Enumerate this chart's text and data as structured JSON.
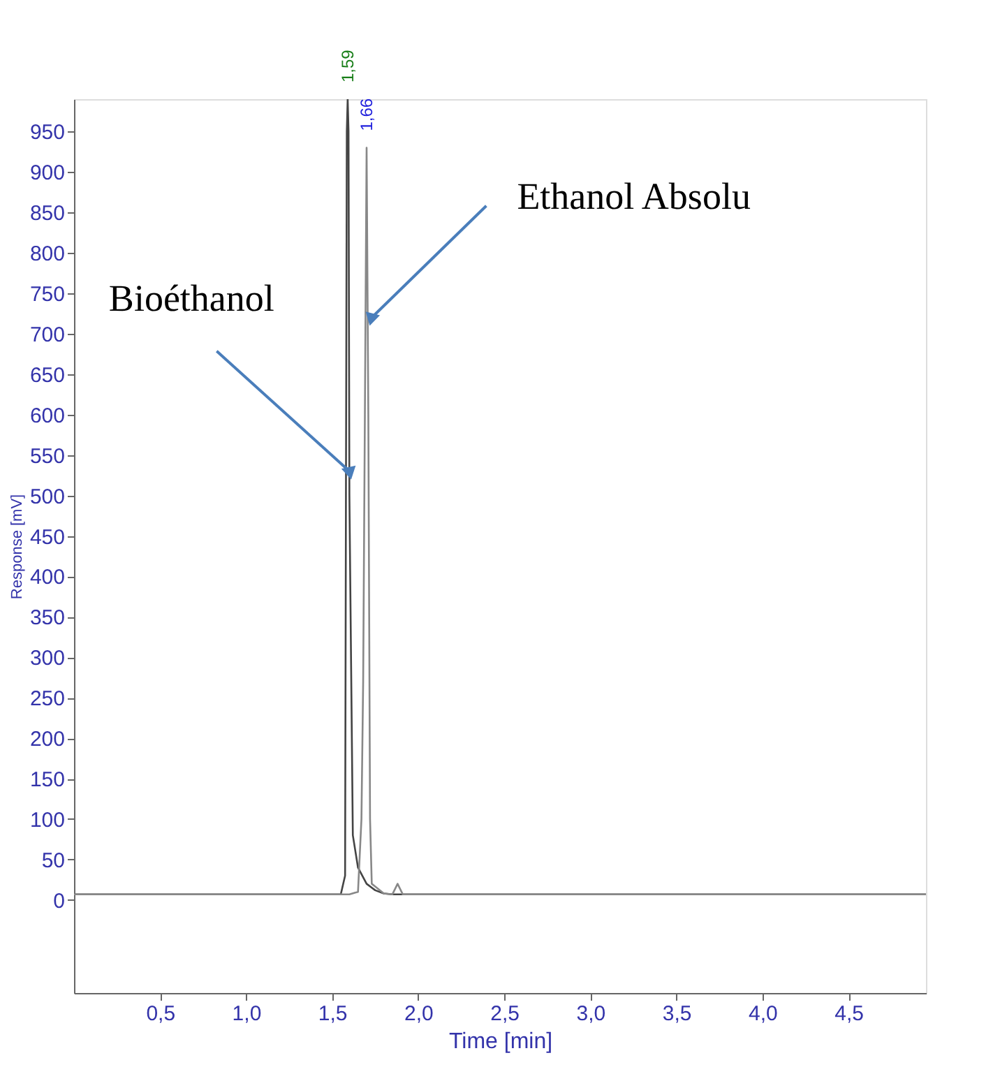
{
  "chart_data": {
    "type": "line",
    "xlabel": "Time [min]",
    "ylabel": "Response [mV]",
    "xlim": [
      0,
      4.95
    ],
    "ylim": [
      -115,
      990
    ],
    "xticks": [
      {
        "value": 0.5,
        "label": "0,5"
      },
      {
        "value": 1.0,
        "label": "1,0"
      },
      {
        "value": 1.5,
        "label": "1,5"
      },
      {
        "value": 2.0,
        "label": "2,0"
      },
      {
        "value": 2.5,
        "label": "2,5"
      },
      {
        "value": 3.0,
        "label": "3,0"
      },
      {
        "value": 3.5,
        "label": "3,5"
      },
      {
        "value": 4.0,
        "label": "4,0"
      },
      {
        "value": 4.5,
        "label": "4,5"
      }
    ],
    "yticks": [
      0,
      50,
      100,
      150,
      200,
      250,
      300,
      350,
      400,
      450,
      500,
      550,
      600,
      650,
      700,
      750,
      800,
      850,
      900,
      950
    ],
    "grid": false,
    "marker": "none",
    "line_style": "solid",
    "series": [
      {
        "color": "#444444",
        "x": [
          0,
          1.55,
          1.575,
          1.58,
          1.585,
          1.59,
          1.595,
          1.6,
          1.62,
          1.65,
          1.7,
          1.75,
          1.8,
          1.85,
          1.88,
          1.9,
          1.95,
          2.0,
          3.0,
          4.95
        ],
        "values": [
          7,
          7,
          30,
          500,
          950,
          990,
          950,
          500,
          80,
          40,
          20,
          12,
          8,
          7,
          7,
          7,
          7,
          7,
          7,
          7
        ]
      },
      {
        "color": "#888888",
        "x": [
          0,
          1.6,
          1.65,
          1.67,
          1.68,
          1.69,
          1.7,
          1.71,
          1.72,
          1.73,
          1.76,
          1.8,
          1.85,
          1.88,
          1.91,
          1.95,
          2.0,
          4.95
        ],
        "values": [
          7,
          7,
          10,
          100,
          270,
          600,
          930,
          600,
          100,
          20,
          15,
          8,
          7,
          20,
          7,
          7,
          7,
          7
        ]
      }
    ],
    "annotations": [
      {
        "text": "Bioéthanol",
        "x": 1.6,
        "y": 530
      },
      {
        "text": "Ethanol Absolu",
        "x": 1.73,
        "y": 720
      },
      {
        "text": "1,59",
        "x": 1.59,
        "y": 990
      },
      {
        "text": "1,66",
        "x": 1.7,
        "y": 930
      }
    ]
  }
}
